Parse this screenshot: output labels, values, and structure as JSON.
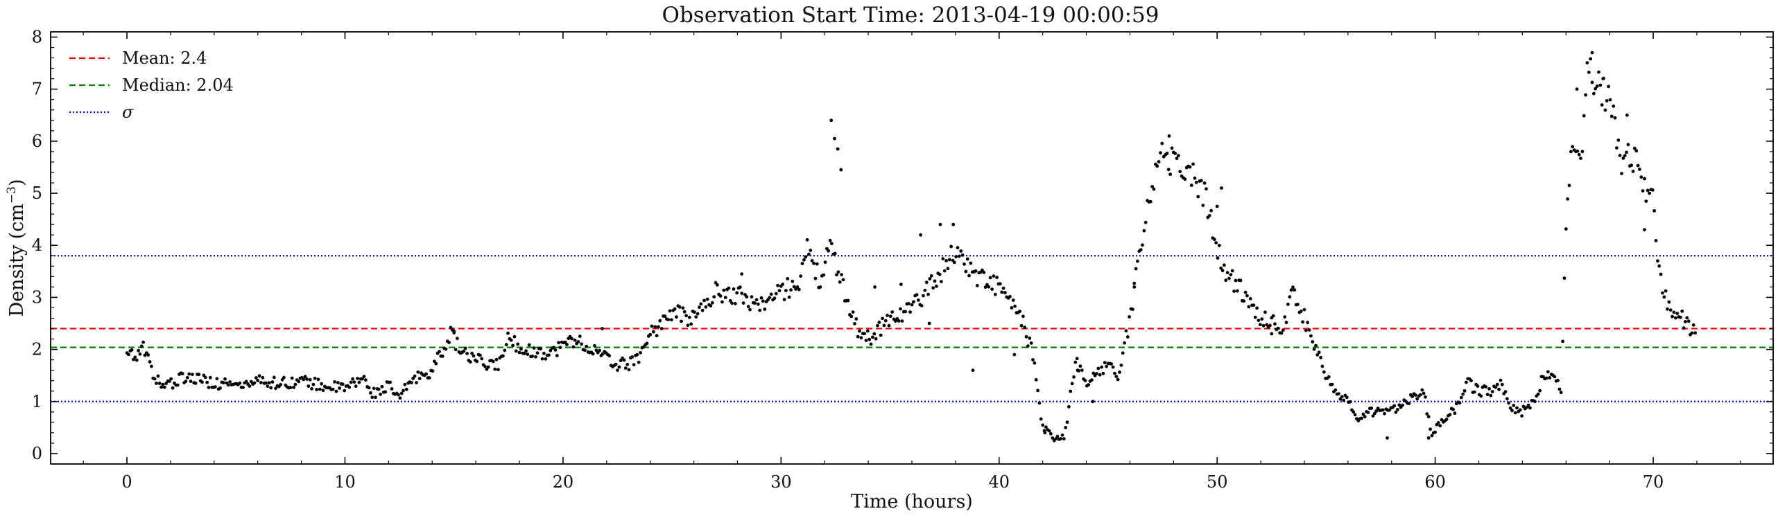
{
  "chart_data": {
    "type": "scatter",
    "title": "Observation Start Time: 2013-04-19 00:00:59",
    "xlabel": "Time (hours)",
    "ylabel": "Density (cm",
    "ylabel_exponent": "−3",
    "ylabel_close": ")",
    "xlim": [
      -3.5,
      75.5
    ],
    "ylim": [
      -0.2,
      8.1
    ],
    "xticks": [
      0,
      10,
      20,
      30,
      40,
      50,
      60,
      70
    ],
    "yticks": [
      0,
      1,
      2,
      3,
      4,
      5,
      6,
      7,
      8
    ],
    "grid": false,
    "legend_position": "top-left",
    "reference_lines": [
      {
        "name": "Mean: 2.4",
        "y": 2.4,
        "color": "#ff0000",
        "style": "dashed"
      },
      {
        "name": "Median: 2.04",
        "y": 2.04,
        "color": "#008000",
        "style": "dashed"
      },
      {
        "name": "σ",
        "y": 1.0,
        "color": "#0000ff",
        "style": "dotted"
      },
      {
        "name": "",
        "y": 3.8,
        "color": "#0000ff",
        "style": "dotted"
      }
    ],
    "series": [
      {
        "color": "#000000",
        "marker": "point",
        "keypoints": [
          [
            0.0,
            2.0
          ],
          [
            0.4,
            1.9
          ],
          [
            0.8,
            2.05
          ],
          [
            1.2,
            1.55
          ],
          [
            1.6,
            1.25
          ],
          [
            2.0,
            1.35
          ],
          [
            2.5,
            1.45
          ],
          [
            3.0,
            1.45
          ],
          [
            4.0,
            1.35
          ],
          [
            5.0,
            1.3
          ],
          [
            6.0,
            1.4
          ],
          [
            7.0,
            1.35
          ],
          [
            8.0,
            1.4
          ],
          [
            9.0,
            1.3
          ],
          [
            10.0,
            1.25
          ],
          [
            10.8,
            1.45
          ],
          [
            11.3,
            1.15
          ],
          [
            12.0,
            1.3
          ],
          [
            12.5,
            1.05
          ],
          [
            13.0,
            1.4
          ],
          [
            13.5,
            1.5
          ],
          [
            14.0,
            1.6
          ],
          [
            14.5,
            2.0
          ],
          [
            14.8,
            2.3
          ],
          [
            15.5,
            1.9
          ],
          [
            16.5,
            1.7
          ],
          [
            17.0,
            1.7
          ],
          [
            17.5,
            2.2
          ],
          [
            18.5,
            1.95
          ],
          [
            19.5,
            1.95
          ],
          [
            20.5,
            2.2
          ],
          [
            21.5,
            1.95
          ],
          [
            22.5,
            1.7
          ],
          [
            23.3,
            1.75
          ],
          [
            24.0,
            2.3
          ],
          [
            25.0,
            2.7
          ],
          [
            26.0,
            2.6
          ],
          [
            26.5,
            2.85
          ],
          [
            27.0,
            3.1
          ],
          [
            28.0,
            3.05
          ],
          [
            29.0,
            2.85
          ],
          [
            30.0,
            3.1
          ],
          [
            30.8,
            3.3
          ],
          [
            31.2,
            3.9
          ],
          [
            31.8,
            3.3
          ],
          [
            32.2,
            4.0
          ],
          [
            33.0,
            3.0
          ],
          [
            33.5,
            2.4
          ],
          [
            34.0,
            2.2
          ],
          [
            35.0,
            2.6
          ],
          [
            36.0,
            2.8
          ],
          [
            37.0,
            3.3
          ],
          [
            38.0,
            3.9
          ],
          [
            39.0,
            3.4
          ],
          [
            40.0,
            3.2
          ],
          [
            41.0,
            2.6
          ],
          [
            41.5,
            2.0
          ],
          [
            42.0,
            0.5
          ],
          [
            42.5,
            0.3
          ],
          [
            43.0,
            0.3
          ],
          [
            43.5,
            1.8
          ],
          [
            44.0,
            1.3
          ],
          [
            44.5,
            1.6
          ],
          [
            45.0,
            1.7
          ],
          [
            45.5,
            1.5
          ],
          [
            46.0,
            2.6
          ],
          [
            46.5,
            4.0
          ],
          [
            47.0,
            5.2
          ],
          [
            47.5,
            5.8
          ],
          [
            48.0,
            5.6
          ],
          [
            49.0,
            5.3
          ],
          [
            49.5,
            4.9
          ],
          [
            50.0,
            3.9
          ],
          [
            50.5,
            3.4
          ],
          [
            51.0,
            3.2
          ],
          [
            51.5,
            2.9
          ],
          [
            52.0,
            2.6
          ],
          [
            53.0,
            2.45
          ],
          [
            53.5,
            3.1
          ],
          [
            54.0,
            2.6
          ],
          [
            54.5,
            2.1
          ],
          [
            55.0,
            1.5
          ],
          [
            55.5,
            1.1
          ],
          [
            56.0,
            1.0
          ],
          [
            56.5,
            0.6
          ],
          [
            57.0,
            0.8
          ],
          [
            58.0,
            0.8
          ],
          [
            58.5,
            1.0
          ],
          [
            59.0,
            1.1
          ],
          [
            59.5,
            1.2
          ],
          [
            59.8,
            0.35
          ],
          [
            60.5,
            0.7
          ],
          [
            61.0,
            0.9
          ],
          [
            61.5,
            1.35
          ],
          [
            62.0,
            1.2
          ],
          [
            62.5,
            1.2
          ],
          [
            63.0,
            1.3
          ],
          [
            63.5,
            0.9
          ],
          [
            64.0,
            0.8
          ],
          [
            64.5,
            1.0
          ],
          [
            65.0,
            1.5
          ],
          [
            65.5,
            1.5
          ],
          [
            65.8,
            1.2
          ],
          [
            66.0,
            4.5
          ],
          [
            66.3,
            5.9
          ],
          [
            66.8,
            6.0
          ],
          [
            67.0,
            7.5
          ],
          [
            67.5,
            7.0
          ],
          [
            68.0,
            6.9
          ],
          [
            68.5,
            5.6
          ],
          [
            69.0,
            5.8
          ],
          [
            69.5,
            5.3
          ],
          [
            70.0,
            4.8
          ],
          [
            70.3,
            3.3
          ],
          [
            70.8,
            2.8
          ],
          [
            71.5,
            2.5
          ],
          [
            72.0,
            2.35
          ]
        ],
        "outliers": [
          [
            32.3,
            6.4
          ],
          [
            32.45,
            6.05
          ],
          [
            32.6,
            5.85
          ],
          [
            32.75,
            5.45
          ],
          [
            37.3,
            4.4
          ],
          [
            37.9,
            4.4
          ],
          [
            38.8,
            1.6
          ],
          [
            42.1,
            0.4
          ],
          [
            47.8,
            6.1
          ],
          [
            50.2,
            5.1
          ],
          [
            50.0,
            4.75
          ],
          [
            40.7,
            1.9
          ],
          [
            43.6,
            1.6
          ],
          [
            66.5,
            7.0
          ],
          [
            67.2,
            7.7
          ],
          [
            67.7,
            7.2
          ],
          [
            68.8,
            6.5
          ],
          [
            69.6,
            4.3
          ],
          [
            46.2,
            3.2
          ],
          [
            35.5,
            3.25
          ],
          [
            36.8,
            2.5
          ],
          [
            28.2,
            3.45
          ],
          [
            34.3,
            3.2
          ],
          [
            36.4,
            4.2
          ],
          [
            57.8,
            0.3
          ],
          [
            59.7,
            0.3
          ],
          [
            21.8,
            2.4
          ],
          [
            15.0,
            2.35
          ],
          [
            52.5,
            2.3
          ],
          [
            44.3,
            1.0
          ]
        ]
      }
    ]
  }
}
